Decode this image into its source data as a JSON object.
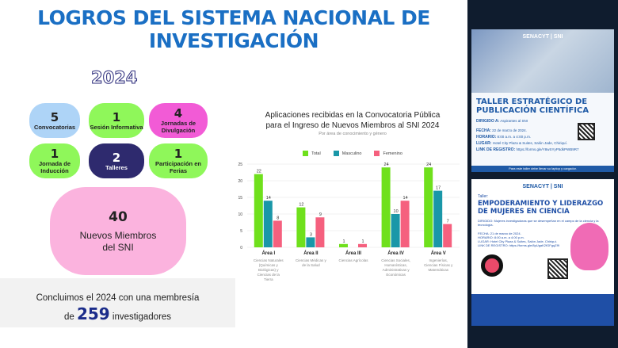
{
  "header": {
    "title_line1": "LOGROS DEL SISTEMA NACIONAL DE",
    "title_line2": "INVESTIGACIÓN",
    "year": "2024"
  },
  "stats": [
    {
      "value": "5",
      "label": "Convocatorias",
      "color": "#aed4f7",
      "text_color": "#222"
    },
    {
      "value": "1",
      "label": "Sesión Informativa",
      "color": "#8ff75a",
      "text_color": "#222"
    },
    {
      "value": "4",
      "label": "Jornadas de Divulgación",
      "color": "#f25bd6",
      "text_color": "#222"
    },
    {
      "value": "1",
      "label": "Jornada de Inducción",
      "color": "#8ff75a",
      "text_color": "#222"
    },
    {
      "value": "2",
      "label": "Talleres",
      "color": "#2e2a6e",
      "text_color": "#fff"
    },
    {
      "value": "1",
      "label": "Participación en Ferias",
      "color": "#8ff75a",
      "text_color": "#222"
    }
  ],
  "highlight": {
    "value": "40",
    "label_line1": "Nuevos Miembros",
    "label_line2": "del SNI"
  },
  "summary": {
    "line1": "Concluimos el 2024 con una membresía",
    "prefix": "de",
    "number": "259",
    "suffix": "investigadores"
  },
  "chart_data": {
    "type": "bar",
    "title": "Aplicaciones recibidas en la Convocatoria Pública para el Ingreso de Nuevos Miembros al SNI 2024",
    "title_line1": "Aplicaciones recibidas en la Convocatoria Pública",
    "title_line2": "para el Ingreso de Nuevos Miembros al SNI 2024",
    "subtitle": "Por área de conocimiento y género",
    "categories": [
      "Área I",
      "Área II",
      "Área III",
      "Área IV",
      "Área V"
    ],
    "category_descriptions": [
      "Ciencias Naturales (Químicas y Biológicas) y Ciencias de la Tierra",
      "Ciencias Médicas y de la Salud",
      "Ciencias Agrícolas",
      "Ciencias Sociales, Humanísticas, Administrativas y Económicas",
      "Ingenierías, Ciencias Físicas y Matemáticas"
    ],
    "series": [
      {
        "name": "Total",
        "color": "#6fe01c",
        "values": [
          22,
          12,
          1,
          24,
          24
        ]
      },
      {
        "name": "Masculino",
        "color": "#1a97a8",
        "values": [
          14,
          3,
          0,
          10,
          17
        ]
      },
      {
        "name": "Femenino",
        "color": "#f5607e",
        "values": [
          8,
          9,
          1,
          14,
          7
        ]
      }
    ],
    "yticks": [
      0,
      5,
      10,
      15,
      20,
      25
    ],
    "ylim": [
      0,
      25
    ],
    "xlabel": "",
    "ylabel": "",
    "grid": true,
    "legend_position": "top"
  },
  "posters": {
    "p1": {
      "logos": "SENACYT | SNI",
      "title": "TALLER ESTRATÉGICO DE PUBLICACIÓN CIENTÍFICA",
      "dirigido_label": "DIRIGIDO A:",
      "dirigido": "Aspirantes al SNI",
      "fecha_label": "FECHA:",
      "fecha": "22 de marzo de 2024.",
      "horario_label": "HORARIO:",
      "horario": "8:00 a.m. a 4:00 p.m.",
      "lugar_label": "LUGAR:",
      "lugar": "Hotel City Plaza & Suites, Salón Jade, Chiriquí.",
      "link_label": "LINK DE REGISTRO:",
      "link": "https://forms.gle/Y8wSYyP5dkPWB9R7",
      "footer": "Para este taller debe llevar su laptop y cargador."
    },
    "p2": {
      "logos": "SENACYT | SNI",
      "kicker": "Taller:",
      "title": "EMPODERAMIENTO Y LIDERAZGO DE MUJERES EN CIENCIA",
      "dirigido": "DIRIGIDO: Mujeres investigadoras que se desempeñan en el campo de la ciencia y la tecnología.",
      "fecha": "FECHA: 21 de marzo de 2024.",
      "horario": "HORARIO: 8:00 a.m. a 4:00 p.m.",
      "lugar": "LUGAR: Hotel City Plaza & Suites, Salón Jade, Chiriquí.",
      "link": "LINK DE REGISTRO: https://forms.gle/8pUgaK2fGFgqZf9"
    }
  }
}
